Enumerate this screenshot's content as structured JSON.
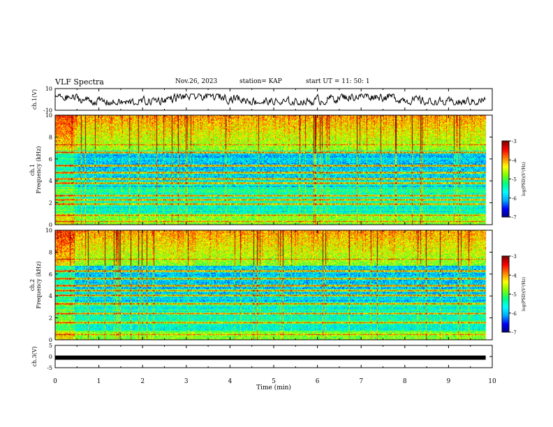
{
  "header": {
    "title": "VLF Spectra",
    "date": "Nov.26, 2023",
    "station": "station= KAP",
    "start": "start UT =  11: 50: 1"
  },
  "colors": {
    "colormap": [
      "#000080",
      "#0000ff",
      "#00aaff",
      "#00ffff",
      "#00ff80",
      "#80ff00",
      "#ffff00",
      "#ff8000",
      "#ff0000",
      "#800000"
    ],
    "trace": "#000000",
    "frame": "#000000"
  },
  "chart_data": [
    {
      "type": "line",
      "ylabel": "ch.1(V)",
      "ylim": [
        -10,
        10
      ],
      "yticks": [
        "10",
        "-10"
      ],
      "xlim": [
        0,
        10
      ],
      "note_values": "waveform trace, approximate amplitude within ±5 V"
    },
    {
      "type": "heatmap",
      "ylabel": "ch.1",
      "ylabel2": "Frequency (kHz)",
      "ylim": [
        0,
        10
      ],
      "yticks": [
        "0",
        "2",
        "4",
        "6",
        "8",
        "10"
      ],
      "xlim": [
        0,
        10
      ],
      "colorbar": {
        "ticks": [
          "-3",
          "-4",
          "-5",
          "-6",
          "-7"
        ],
        "label": "log(PSD)(V²/Hz)",
        "range": [
          -7,
          -3
        ]
      },
      "bands_khz": [
        0.3,
        0.9,
        1.9,
        2.3,
        2.7,
        3.8,
        4.2,
        4.8,
        5.4,
        6.6,
        7.3
      ],
      "data_end_min": 9.85
    },
    {
      "type": "heatmap",
      "ylabel": "ch.2",
      "ylabel2": "Frequency (kHz)",
      "ylim": [
        0,
        10
      ],
      "yticks": [
        "0",
        "2",
        "4",
        "6",
        "8",
        "10"
      ],
      "xlim": [
        0,
        10
      ],
      "colorbar": {
        "ticks": [
          "-3",
          "-4",
          "-5",
          "-6",
          "-7"
        ],
        "label": "log(PSD)(V²/Hz)",
        "range": [
          -7,
          -3
        ]
      },
      "bands_khz": [
        0.5,
        1.6,
        2.4,
        3.3,
        4.1,
        4.5,
        5.0,
        5.6,
        6.3,
        7.4
      ],
      "data_end_min": 9.85
    },
    {
      "type": "line",
      "ylabel": "ch.3(V)",
      "ylim": [
        -5,
        5
      ],
      "yticks": [
        "5",
        "0",
        "-5"
      ],
      "xlim": [
        0,
        10
      ],
      "xlabel": "Time (min)",
      "xticks": [
        "0",
        "1",
        "2",
        "3",
        "4",
        "5",
        "6",
        "7",
        "8",
        "9",
        "10"
      ],
      "level": -0.5
    }
  ]
}
